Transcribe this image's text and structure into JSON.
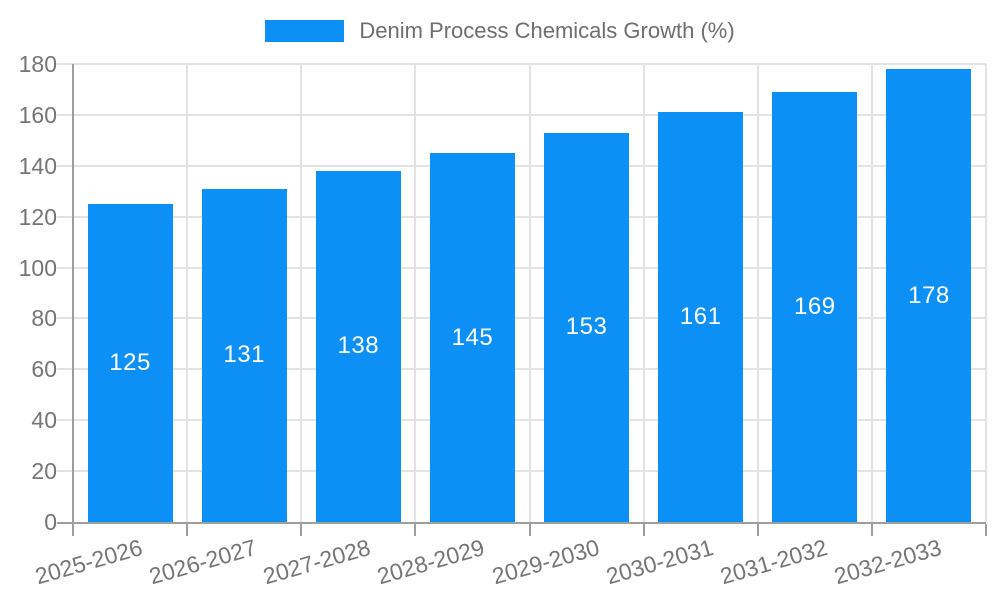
{
  "chart_data": {
    "type": "bar",
    "title": "Denim Process Chemicals Growth (%)",
    "categories": [
      "2025-2026",
      "2026-2027",
      "2027-2028",
      "2028-2029",
      "2029-2030",
      "2030-2031",
      "2031-2032",
      "2032-2033"
    ],
    "values": [
      125,
      131,
      138,
      145,
      153,
      161,
      169,
      178
    ],
    "xlabel": "",
    "ylabel": "",
    "ylim": [
      0,
      180
    ],
    "ytick_step": 20,
    "yticks": [
      0,
      20,
      40,
      60,
      80,
      100,
      120,
      140,
      160,
      180
    ],
    "grid": "on",
    "legend_position": "top-center",
    "bar_labels_position": "inside-center",
    "colors": {
      "bar": "#0d90f5",
      "bar_label": "#ffffff",
      "grid": "#e3e3e3",
      "axis": "#9e9e9e",
      "tick_text": "#757575",
      "legend_text": "#6e6e6e",
      "background": "#ffffff"
    }
  }
}
